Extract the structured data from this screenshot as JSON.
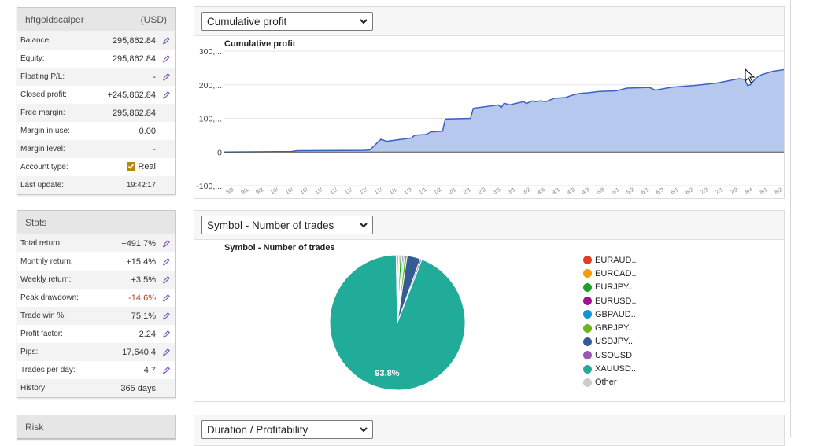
{
  "account": {
    "name": "hftgoldscalper",
    "currency": "(USD)",
    "rows": [
      {
        "label": "Balance:",
        "value": "295,862.84"
      },
      {
        "label": "Equity:",
        "value": "295,862.84"
      },
      {
        "label": "Floating P/L:",
        "value": "-"
      },
      {
        "label": "Closed profit:",
        "value": "+245,862.84"
      },
      {
        "label": "Free margin:",
        "value": "295,862.84"
      },
      {
        "label": "Margin in use:",
        "value": "0.00"
      },
      {
        "label": "Margin level:",
        "value": "-"
      },
      {
        "label": "Account type:",
        "value": "Real"
      },
      {
        "label": "Last update:",
        "value": "19:42:17"
      }
    ]
  },
  "stats": {
    "title": "Stats",
    "rows": [
      {
        "label": "Total return:",
        "value": "+491.7%"
      },
      {
        "label": "Monthly return:",
        "value": "+15.4%"
      },
      {
        "label": "Weekly return:",
        "value": "+3.5%"
      },
      {
        "label": "Peak drawdown:",
        "value": "-14.6%"
      },
      {
        "label": "Trade win %:",
        "value": "75.1%"
      },
      {
        "label": "Profit factor:",
        "value": "2.24"
      },
      {
        "label": "Pips:",
        "value": "17,640.4"
      },
      {
        "label": "Trades per day:",
        "value": "4.7"
      },
      {
        "label": "History:",
        "value": "365 days"
      }
    ]
  },
  "risk": {
    "title": "Risk"
  },
  "cards": {
    "profit_select": "Cumulative profit",
    "symbol_select": "Symbol - Number of trades",
    "duration_select": "Duration / Profitability"
  },
  "colors": {
    "area_fill": "#b6c8ee",
    "area_line": "#3a62c4",
    "negative": "#c0392b"
  },
  "chart_data": [
    {
      "type": "area",
      "title": "Cumulative profit",
      "ytick_labels": [
        "300,...",
        "200,...",
        "100,...",
        "0",
        "-100,..."
      ],
      "ylim": [
        -100000,
        300000
      ],
      "x_tick_labels": [
        "8/8",
        "9/1",
        "9/2",
        "10/",
        "10/",
        "10/",
        "11/",
        "11/",
        "11/",
        "12/",
        "12/",
        "1/1",
        "1/9",
        "1/1",
        "1/2",
        "2/1",
        "2/1",
        "2/2",
        "3/5",
        "3/1",
        "3/2",
        "4/6",
        "4/1",
        "4/2",
        "4/3",
        "5/8",
        "5/1",
        "5/2",
        "6/1",
        "6/9",
        "6/1",
        "6/2",
        "7/3",
        "7/1",
        "7/2",
        "8/4",
        "8/1",
        "8/2"
      ],
      "xlim": [
        0,
        100
      ],
      "x": [
        0,
        12,
        13,
        25,
        26,
        28,
        29,
        33.5,
        34,
        36,
        37,
        39,
        39.5,
        44,
        44.5,
        49,
        49.5,
        50,
        51,
        53.5,
        54,
        55,
        55.6,
        56.5,
        57.5,
        59,
        61,
        62,
        62.8,
        64,
        65,
        66,
        67,
        70,
        72,
        76,
        77,
        80,
        84,
        88,
        91,
        92,
        93,
        93.5,
        94,
        95,
        96,
        98,
        100
      ],
      "y": [
        0,
        1500,
        4000,
        5000,
        6000,
        38000,
        32000,
        42000,
        50000,
        52000,
        60000,
        62000,
        98000,
        100000,
        130000,
        140000,
        132000,
        145000,
        140000,
        150000,
        144000,
        152000,
        150000,
        152000,
        150000,
        160000,
        162000,
        168000,
        172000,
        175000,
        176000,
        178000,
        180000,
        182000,
        190000,
        192000,
        184000,
        193000,
        198000,
        205000,
        215000,
        218000,
        216000,
        198000,
        200000,
        220000,
        230000,
        240000,
        245000
      ]
    },
    {
      "type": "pie",
      "title": "Symbol - Number of trades",
      "labels": [
        "EURAUD..",
        "EURCAD..",
        "EURJPY..",
        "EURUSD..",
        "GBPAUD..",
        "GBPJPY..",
        "USDJPY..",
        "USOUSD",
        "XAUUSD..",
        "Other"
      ],
      "values": [
        0.3,
        0.3,
        0.5,
        0.3,
        0.3,
        0.6,
        3.2,
        0.4,
        93.8,
        0.3
      ],
      "colors": [
        "#e0401f",
        "#f59b00",
        "#1e9e2a",
        "#a0118e",
        "#1395d1",
        "#6ab520",
        "#335c95",
        "#9b59b6",
        "#21ab99",
        "#cccccc"
      ],
      "data_label": "93.8%"
    }
  ]
}
